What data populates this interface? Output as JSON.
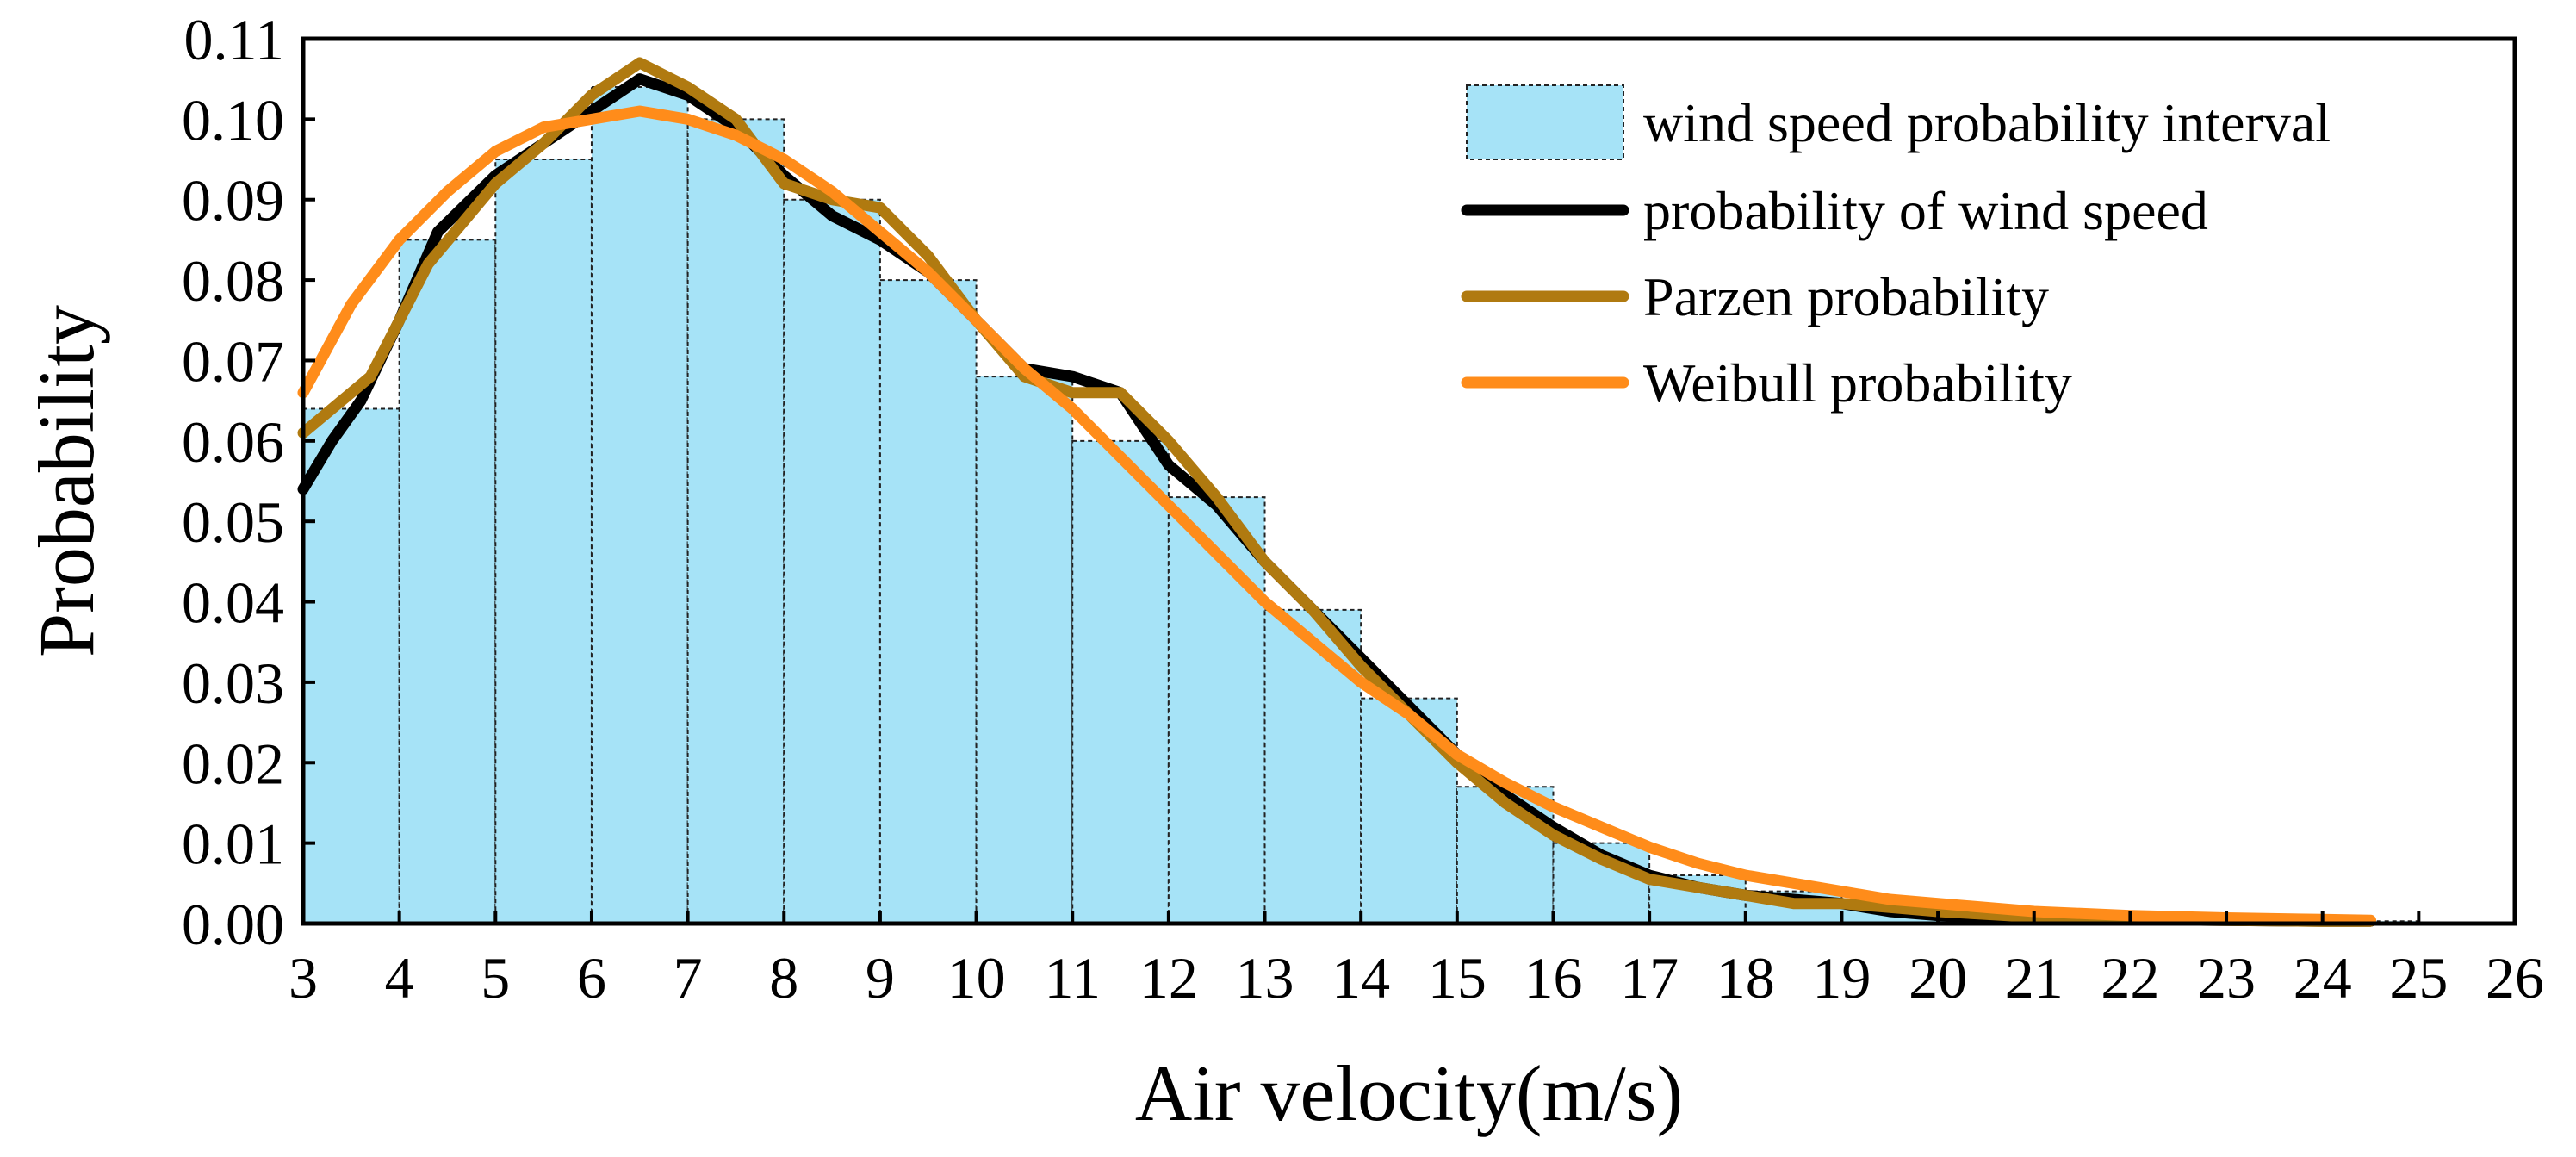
{
  "chart_data": {
    "type": "bar",
    "xlabel": "Air velocity(m/s)",
    "ylabel": "Probability",
    "xlim": [
      3,
      26
    ],
    "ylim": [
      0,
      0.11
    ],
    "x_ticks": [
      "3",
      "4",
      "5",
      "6",
      "7",
      "8",
      "9",
      "10",
      "11",
      "12",
      "13",
      "14",
      "15",
      "16",
      "17",
      "18",
      "19",
      "20",
      "21",
      "22",
      "23",
      "24",
      "25",
      "26"
    ],
    "y_ticks": [
      "0.00",
      "0.01",
      "0.02",
      "0.03",
      "0.04",
      "0.05",
      "0.06",
      "0.07",
      "0.08",
      "0.09",
      "0.10",
      "0.11"
    ],
    "grid": false,
    "legend_position": "top-right",
    "colors": {
      "bar_fill": "#a6e3f7",
      "bar_edge": "#222222",
      "empirical": "#000000",
      "parzen": "#b07a10",
      "weibull": "#ff8c1a"
    },
    "histogram": {
      "name": "wind speed probability interval",
      "bin_edges": [
        3,
        4,
        5,
        6,
        7,
        8,
        9,
        10,
        11,
        12,
        13,
        14,
        15,
        16,
        17,
        18,
        19,
        20,
        21,
        22,
        23,
        24,
        25
      ],
      "values": [
        0.064,
        0.085,
        0.095,
        0.104,
        0.1,
        0.09,
        0.08,
        0.068,
        0.06,
        0.053,
        0.039,
        0.028,
        0.017,
        0.01,
        0.006,
        0.004,
        0.002,
        0.0015,
        0.001,
        0.0008,
        0.0005,
        0.0003
      ]
    },
    "series": [
      {
        "name": "probability of wind speed",
        "x": [
          3,
          3.3,
          3.6,
          4,
          4.4,
          5,
          5.5,
          6,
          6.5,
          7,
          7.5,
          8,
          8.5,
          9,
          9.5,
          10,
          10.5,
          11,
          11.5,
          12,
          12.5,
          13,
          13.5,
          14,
          14.5,
          15,
          15.5,
          16,
          16.5,
          17,
          17.5,
          18,
          18.5,
          19,
          19.5,
          20,
          21,
          22,
          23,
          24,
          24.5
        ],
        "y": [
          0.054,
          0.06,
          0.065,
          0.075,
          0.086,
          0.093,
          0.097,
          0.101,
          0.105,
          0.103,
          0.099,
          0.093,
          0.088,
          0.085,
          0.081,
          0.075,
          0.069,
          0.068,
          0.066,
          0.057,
          0.052,
          0.045,
          0.039,
          0.033,
          0.027,
          0.021,
          0.016,
          0.012,
          0.0085,
          0.006,
          0.0045,
          0.0035,
          0.003,
          0.0025,
          0.0015,
          0.001,
          0.0007,
          0.0005,
          0.0004,
          0.0003,
          0.0003
        ]
      },
      {
        "name": "Parzen probability",
        "x": [
          3,
          3.3,
          3.7,
          4,
          4.3,
          5,
          5.5,
          6,
          6.5,
          7,
          7.5,
          8,
          8.5,
          9,
          9.5,
          10,
          10.5,
          11,
          11.5,
          12,
          12.5,
          13,
          13.5,
          14,
          14.5,
          15,
          15.5,
          16,
          16.5,
          17,
          17.5,
          18,
          18.5,
          19,
          19.5,
          20,
          21,
          22,
          23,
          24,
          24.5
        ],
        "y": [
          0.061,
          0.064,
          0.068,
          0.075,
          0.082,
          0.092,
          0.097,
          0.103,
          0.107,
          0.104,
          0.1,
          0.092,
          0.09,
          0.089,
          0.083,
          0.075,
          0.068,
          0.066,
          0.066,
          0.06,
          0.053,
          0.045,
          0.039,
          0.032,
          0.026,
          0.02,
          0.015,
          0.011,
          0.008,
          0.0055,
          0.0045,
          0.0035,
          0.0025,
          0.0025,
          0.002,
          0.0015,
          0.0008,
          0.0005,
          0.0004,
          0.0003,
          0.0003
        ]
      },
      {
        "name": "Weibull probability",
        "x": [
          3,
          3.5,
          4,
          4.5,
          5,
          5.5,
          6,
          6.5,
          7,
          7.5,
          8,
          8.5,
          9,
          9.5,
          10,
          10.5,
          11,
          11.5,
          12,
          12.5,
          13,
          13.5,
          14,
          14.5,
          15,
          15.5,
          16,
          16.5,
          17,
          17.5,
          18,
          18.5,
          19,
          19.5,
          20,
          21,
          22,
          23,
          24,
          24.5
        ],
        "y": [
          0.066,
          0.077,
          0.085,
          0.091,
          0.096,
          0.099,
          0.1,
          0.101,
          0.1,
          0.098,
          0.095,
          0.091,
          0.086,
          0.081,
          0.075,
          0.069,
          0.064,
          0.058,
          0.052,
          0.046,
          0.04,
          0.035,
          0.03,
          0.026,
          0.021,
          0.0175,
          0.0145,
          0.012,
          0.0095,
          0.0075,
          0.006,
          0.005,
          0.004,
          0.003,
          0.0025,
          0.0015,
          0.001,
          0.0007,
          0.0005,
          0.0004
        ]
      }
    ]
  }
}
